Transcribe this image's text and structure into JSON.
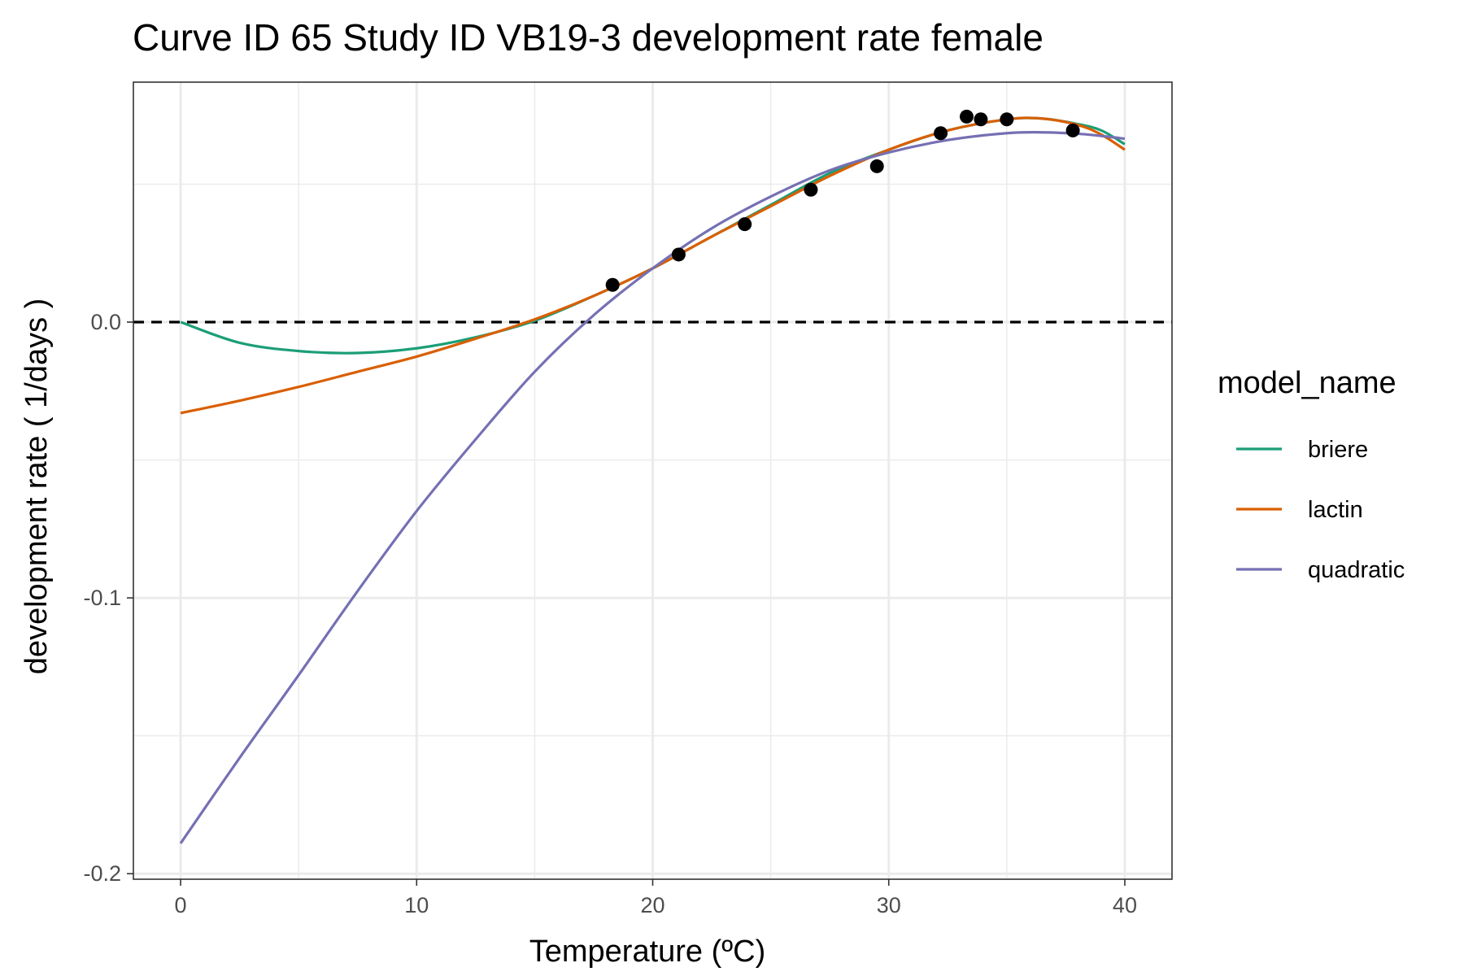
{
  "chart_data": {
    "type": "line",
    "title": "Curve ID 65 Study ID VB19-3 development rate female",
    "xlabel": "Temperature (ºC)",
    "ylabel": "development rate ( 1/days )",
    "xlim": [
      -2,
      42
    ],
    "ylim": [
      -0.202,
      0.087
    ],
    "x_ticks": [
      0,
      10,
      20,
      30,
      40
    ],
    "x_tick_labels": [
      "0",
      "10",
      "20",
      "30",
      "40"
    ],
    "y_ticks": [
      -0.2,
      -0.1,
      0.0
    ],
    "y_tick_labels": [
      "-0.2",
      "-0.1",
      "0.0"
    ],
    "reference_line": {
      "y": 0,
      "style": "dashed",
      "color": "#000000"
    },
    "grid": true,
    "legend": {
      "title": "model_name",
      "placement": "right"
    },
    "x": [
      0,
      2.5,
      5,
      7.5,
      10,
      12.5,
      15,
      17.5,
      20,
      22.5,
      25,
      27.5,
      30,
      32.5,
      35,
      36.5,
      38,
      39,
      40
    ],
    "series": [
      {
        "name": "briere",
        "color": "#1b9e77",
        "values": [
          0.0,
          -0.0075,
          -0.0105,
          -0.0112,
          -0.0095,
          -0.0055,
          0.0005,
          0.0095,
          0.0195,
          0.031,
          0.0425,
          0.054,
          0.0625,
          0.0695,
          0.0735,
          0.0738,
          0.0718,
          0.0695,
          0.0645
        ]
      },
      {
        "name": "lactin",
        "color": "#d95f02",
        "values": [
          -0.033,
          -0.0285,
          -0.0235,
          -0.018,
          -0.0125,
          -0.006,
          0.001,
          0.0095,
          0.0195,
          0.031,
          0.042,
          0.053,
          0.0625,
          0.0695,
          0.0735,
          0.0738,
          0.0715,
          0.068,
          0.0625
        ]
      },
      {
        "name": "quadratic",
        "color": "#7570b3",
        "values": [
          -0.189,
          -0.158,
          -0.128,
          -0.0975,
          -0.0685,
          -0.0425,
          -0.018,
          0.0025,
          0.0195,
          0.034,
          0.0455,
          0.055,
          0.0615,
          0.066,
          0.0685,
          0.0688,
          0.0683,
          0.0675,
          0.0665
        ]
      }
    ],
    "points": {
      "color": "#000000",
      "x": [
        18.3,
        21.1,
        23.9,
        26.7,
        29.5,
        32.2,
        33.3,
        33.9,
        35.0,
        37.8
      ],
      "y": [
        0.0135,
        0.0245,
        0.0355,
        0.048,
        0.0565,
        0.0685,
        0.0745,
        0.0735,
        0.0735,
        0.0695
      ]
    }
  }
}
